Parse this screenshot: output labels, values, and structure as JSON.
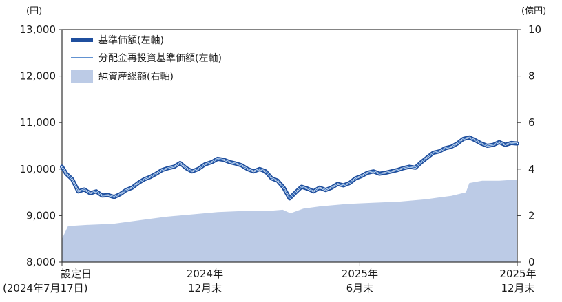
{
  "chart_data": {
    "type": "line",
    "left_unit": "(円)",
    "right_unit": "(億円)",
    "left_ylim": [
      8000,
      13000
    ],
    "left_ticks": [
      "8,000",
      "9,000",
      "10,000",
      "11,000",
      "12,000",
      "13,000"
    ],
    "left_tick_values": [
      8000,
      9000,
      10000,
      11000,
      12000,
      13000
    ],
    "right_ylim": [
      0,
      10
    ],
    "right_ticks": [
      "0",
      "2",
      "4",
      "6",
      "8",
      "10"
    ],
    "right_tick_values": [
      0,
      2,
      4,
      6,
      8,
      10
    ],
    "x_range": [
      "2024-07-17",
      "2025-12-31"
    ],
    "x_ticks": [
      {
        "date": "2024-07-17",
        "lines": [
          "設定日",
          "(2024年7月17日)"
        ],
        "align": "start"
      },
      {
        "date": "2024-12-31",
        "lines": [
          "2024年",
          "12月末"
        ],
        "align": "middle"
      },
      {
        "date": "2025-06-30",
        "lines": [
          "2025年",
          "6月末"
        ],
        "align": "middle"
      },
      {
        "date": "2025-12-31",
        "lines": [
          "2025年",
          "12月末"
        ],
        "align": "middle"
      }
    ],
    "legend": [
      {
        "label": "基準価額(左軸)",
        "style": "thick-line"
      },
      {
        "label": "分配金再投資基準価額(左軸)",
        "style": "thin-line"
      },
      {
        "label": "純資産総額(右軸)",
        "style": "area"
      }
    ],
    "colors": {
      "nav": "#1f4f9e",
      "nav_inner": "#ffffff",
      "reinvest": "#2f6fc2",
      "assets": "#bccbe6"
    },
    "series": [
      {
        "name": "基準価額(左軸)",
        "axis": "left",
        "points": [
          [
            "2024-07-17",
            10050
          ],
          [
            "2024-07-22",
            9900
          ],
          [
            "2024-07-29",
            9780
          ],
          [
            "2024-08-05",
            9520
          ],
          [
            "2024-08-12",
            9560
          ],
          [
            "2024-08-19",
            9480
          ],
          [
            "2024-08-26",
            9520
          ],
          [
            "2024-09-02",
            9430
          ],
          [
            "2024-09-09",
            9440
          ],
          [
            "2024-09-16",
            9400
          ],
          [
            "2024-09-23",
            9460
          ],
          [
            "2024-09-30",
            9550
          ],
          [
            "2024-10-07",
            9600
          ],
          [
            "2024-10-14",
            9700
          ],
          [
            "2024-10-21",
            9780
          ],
          [
            "2024-10-28",
            9830
          ],
          [
            "2024-11-04",
            9900
          ],
          [
            "2024-11-11",
            9980
          ],
          [
            "2024-11-18",
            10020
          ],
          [
            "2024-11-25",
            10050
          ],
          [
            "2024-12-02",
            10130
          ],
          [
            "2024-12-09",
            10020
          ],
          [
            "2024-12-16",
            9950
          ],
          [
            "2024-12-23",
            10000
          ],
          [
            "2024-12-31",
            10100
          ],
          [
            "2025-01-08",
            10150
          ],
          [
            "2025-01-15",
            10220
          ],
          [
            "2025-01-22",
            10200
          ],
          [
            "2025-01-29",
            10150
          ],
          [
            "2025-02-05",
            10120
          ],
          [
            "2025-02-12",
            10080
          ],
          [
            "2025-02-19",
            10000
          ],
          [
            "2025-02-26",
            9950
          ],
          [
            "2025-03-05",
            10000
          ],
          [
            "2025-03-12",
            9950
          ],
          [
            "2025-03-19",
            9800
          ],
          [
            "2025-03-26",
            9750
          ],
          [
            "2025-04-02",
            9600
          ],
          [
            "2025-04-09",
            9370
          ],
          [
            "2025-04-16",
            9500
          ],
          [
            "2025-04-23",
            9620
          ],
          [
            "2025-04-30",
            9580
          ],
          [
            "2025-05-07",
            9520
          ],
          [
            "2025-05-14",
            9600
          ],
          [
            "2025-05-21",
            9550
          ],
          [
            "2025-05-28",
            9600
          ],
          [
            "2025-06-04",
            9680
          ],
          [
            "2025-06-11",
            9650
          ],
          [
            "2025-06-18",
            9700
          ],
          [
            "2025-06-25",
            9800
          ],
          [
            "2025-07-02",
            9850
          ],
          [
            "2025-07-09",
            9920
          ],
          [
            "2025-07-16",
            9950
          ],
          [
            "2025-07-23",
            9900
          ],
          [
            "2025-07-30",
            9920
          ],
          [
            "2025-08-06",
            9950
          ],
          [
            "2025-08-13",
            9980
          ],
          [
            "2025-08-20",
            10020
          ],
          [
            "2025-08-27",
            10050
          ],
          [
            "2025-09-03",
            10030
          ],
          [
            "2025-09-10",
            10150
          ],
          [
            "2025-09-17",
            10250
          ],
          [
            "2025-09-24",
            10350
          ],
          [
            "2025-10-01",
            10380
          ],
          [
            "2025-10-08",
            10450
          ],
          [
            "2025-10-15",
            10480
          ],
          [
            "2025-10-22",
            10550
          ],
          [
            "2025-10-29",
            10650
          ],
          [
            "2025-11-05",
            10680
          ],
          [
            "2025-11-12",
            10620
          ],
          [
            "2025-11-19",
            10550
          ],
          [
            "2025-11-26",
            10500
          ],
          [
            "2025-12-03",
            10520
          ],
          [
            "2025-12-10",
            10580
          ],
          [
            "2025-12-17",
            10520
          ],
          [
            "2025-12-24",
            10560
          ],
          [
            "2025-12-31",
            10550
          ]
        ]
      },
      {
        "name": "分配金再投資基準価額(左軸)",
        "axis": "left",
        "same_as": "基準価額(左軸)"
      },
      {
        "name": "純資産総額(右軸)",
        "axis": "right",
        "points": [
          [
            "2024-07-17",
            1.0
          ],
          [
            "2024-07-24",
            1.55
          ],
          [
            "2024-08-15",
            1.6
          ],
          [
            "2024-09-15",
            1.65
          ],
          [
            "2024-10-15",
            1.8
          ],
          [
            "2024-11-15",
            1.95
          ],
          [
            "2024-12-15",
            2.05
          ],
          [
            "2025-01-15",
            2.15
          ],
          [
            "2025-02-15",
            2.2
          ],
          [
            "2025-03-15",
            2.2
          ],
          [
            "2025-04-01",
            2.25
          ],
          [
            "2025-04-10",
            2.1
          ],
          [
            "2025-04-25",
            2.3
          ],
          [
            "2025-05-15",
            2.4
          ],
          [
            "2025-06-15",
            2.5
          ],
          [
            "2025-07-15",
            2.55
          ],
          [
            "2025-08-15",
            2.6
          ],
          [
            "2025-09-15",
            2.7
          ],
          [
            "2025-10-15",
            2.85
          ],
          [
            "2025-11-01",
            3.0
          ],
          [
            "2025-11-05",
            3.4
          ],
          [
            "2025-11-20",
            3.5
          ],
          [
            "2025-12-10",
            3.5
          ],
          [
            "2025-12-31",
            3.55
          ]
        ]
      }
    ]
  }
}
